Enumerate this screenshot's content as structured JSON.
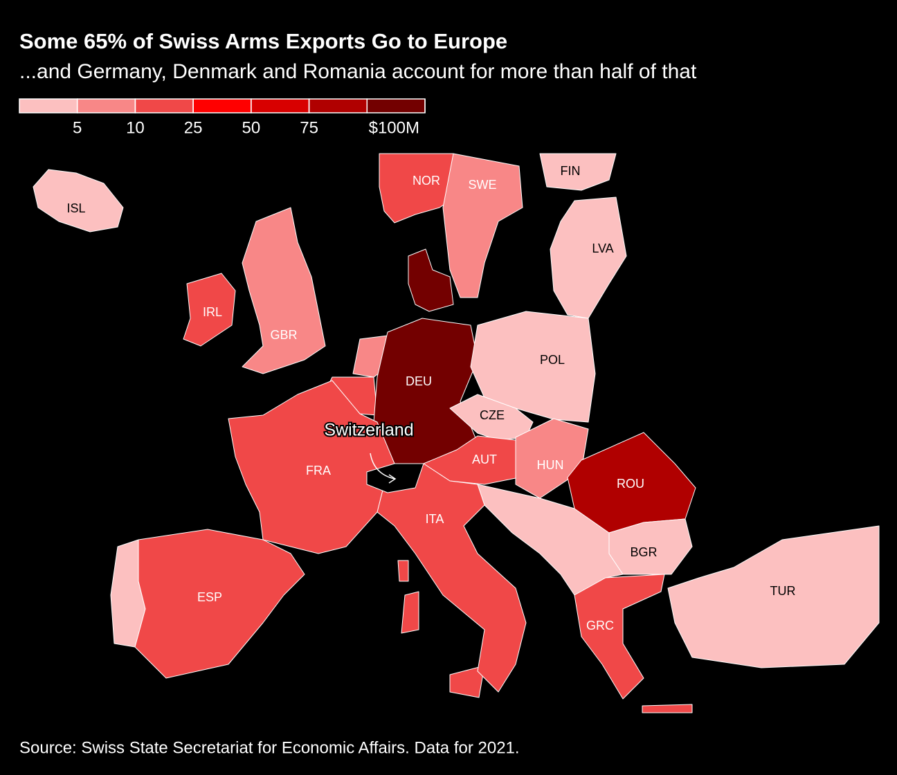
{
  "title": "Some 65% of Swiss Arms Exports Go to Europe",
  "subtitle": "...and Germany, Denmark and Romania account for more than half of that",
  "legend": {
    "colors": [
      "#fcc0c0",
      "#f88787",
      "#f04848",
      "#ff0000",
      "#d80000",
      "#b00000",
      "#730000"
    ],
    "ticks": [
      5,
      10,
      25,
      50,
      75,
      {
        "value": 100,
        "label": "$100M"
      }
    ]
  },
  "annotation": "Switzerland",
  "countries": [
    {
      "label": "ISL",
      "color": "#fcc0c0"
    },
    {
      "label": "NOR",
      "color": "#f04848"
    },
    {
      "label": "SWE",
      "color": "#f88787"
    },
    {
      "label": "FIN",
      "color": "#fcc0c0"
    },
    {
      "label": "LVA",
      "color": "#fcc0c0"
    },
    {
      "label": "IRL",
      "color": "#f04848"
    },
    {
      "label": "GBR",
      "color": "#f88787"
    },
    {
      "label": "DEU",
      "color": "#730000"
    },
    {
      "label": "POL",
      "color": "#fcc0c0"
    },
    {
      "label": "CZE",
      "color": "#fcc0c0"
    },
    {
      "label": "AUT",
      "color": "#f04848"
    },
    {
      "label": "HUN",
      "color": "#f88787"
    },
    {
      "label": "ROU",
      "color": "#b00000"
    },
    {
      "label": "BGR",
      "color": "#fcc0c0"
    },
    {
      "label": "TUR",
      "color": "#fcc0c0"
    },
    {
      "label": "GRC",
      "color": "#f04848"
    },
    {
      "label": "ITA",
      "color": "#f04848"
    },
    {
      "label": "FRA",
      "color": "#f04848"
    },
    {
      "label": "ESP",
      "color": "#f04848"
    }
  ],
  "source": "Source: Swiss State Secretariat for Economic Affairs. Data for 2021."
}
